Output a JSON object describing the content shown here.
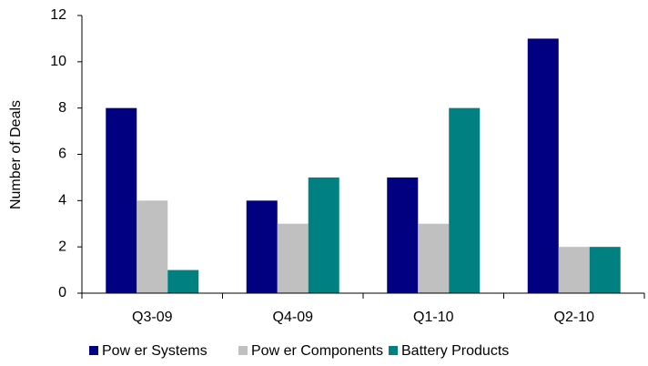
{
  "chart_data": {
    "type": "bar",
    "y_label": "Number of Deals",
    "categories": [
      "Q3-09",
      "Q4-09",
      "Q1-10",
      "Q2-10"
    ],
    "series": [
      {
        "name": "Pow er Systems",
        "color": "#000080",
        "values": [
          8,
          4,
          5,
          11
        ]
      },
      {
        "name": "Pow er Components",
        "color": "#c0c0c0",
        "values": [
          4,
          3,
          3,
          2
        ]
      },
      {
        "name": "Battery Products",
        "color": "#008080",
        "values": [
          1,
          5,
          8,
          2
        ]
      }
    ],
    "ylim": [
      0,
      12
    ],
    "yticks": [
      0,
      2,
      4,
      6,
      8,
      10,
      12
    ],
    "grid": false,
    "legend": "bottom"
  }
}
